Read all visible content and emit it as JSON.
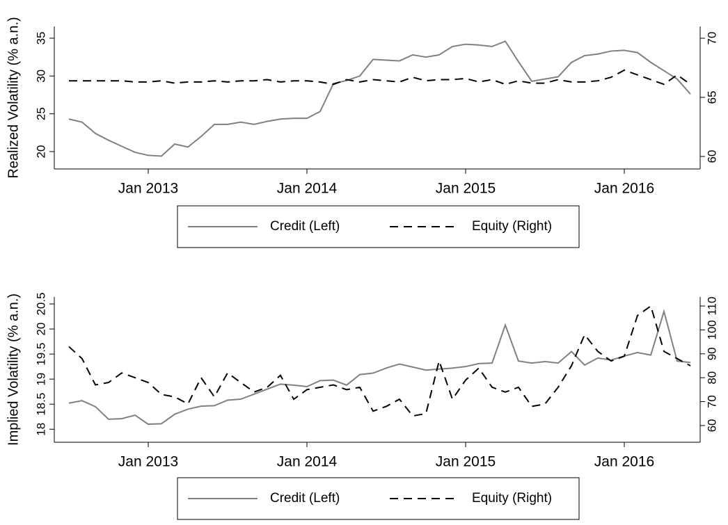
{
  "chart_data": [
    {
      "type": "line",
      "ylabel": "Realized Volatility (% a.n.)",
      "x": [
        2012.5,
        2012.583,
        2012.667,
        2012.75,
        2012.833,
        2012.917,
        2013,
        2013.083,
        2013.167,
        2013.25,
        2013.333,
        2013.417,
        2013.5,
        2013.583,
        2013.667,
        2013.75,
        2013.833,
        2013.917,
        2014,
        2014.083,
        2014.167,
        2014.25,
        2014.333,
        2014.417,
        2014.5,
        2014.583,
        2014.667,
        2014.75,
        2014.833,
        2014.917,
        2015,
        2015.083,
        2015.167,
        2015.25,
        2015.333,
        2015.417,
        2015.5,
        2015.583,
        2015.667,
        2015.75,
        2015.833,
        2015.917,
        2016,
        2016.083,
        2016.167,
        2016.25,
        2016.333,
        2016.417
      ],
      "xlim": [
        2012.408,
        2016.478
      ],
      "xticks": [
        {
          "value": 2013,
          "label": "Jan 2013"
        },
        {
          "value": 2014,
          "label": "Jan 2014"
        },
        {
          "value": 2015,
          "label": "Jan 2015"
        },
        {
          "value": 2016,
          "label": "Jan 2016"
        }
      ],
      "ylim": [
        17.7,
        36.56
      ],
      "yticks": [
        20,
        25,
        30,
        35
      ],
      "y2lim": [
        58.94,
        71
      ],
      "y2ticks": [
        60,
        65,
        70
      ],
      "grid": false,
      "legend": "bottom",
      "series": [
        {
          "name": "Credit (Left)",
          "color": "#808080",
          "line_style": "solid",
          "axis": "y",
          "values": [
            24.3,
            23.9,
            22.4,
            21.5,
            20.7,
            19.9,
            19.5,
            19.4,
            21.0,
            20.6,
            22.0,
            23.6,
            23.6,
            23.9,
            23.6,
            24.0,
            24.3,
            24.4,
            24.4,
            25.3,
            29.0,
            29.4,
            30.0,
            32.2,
            32.1,
            32.0,
            32.8,
            32.5,
            32.8,
            33.9,
            34.2,
            34.1,
            33.9,
            34.6,
            31.9,
            29.3,
            29.6,
            29.9,
            31.8,
            32.7,
            32.9,
            33.3,
            33.4,
            33.1,
            31.8,
            30.7,
            29.6,
            27.6
          ]
        },
        {
          "name": "Equity (Right)",
          "color": "#000000",
          "line_style": "dashed",
          "axis": "y2",
          "values": [
            66.4,
            66.4,
            66.4,
            66.4,
            66.4,
            66.3,
            66.3,
            66.4,
            66.2,
            66.3,
            66.3,
            66.4,
            66.3,
            66.4,
            66.4,
            66.5,
            66.3,
            66.4,
            66.4,
            66.3,
            66.1,
            66.5,
            66.3,
            66.5,
            66.4,
            66.3,
            66.7,
            66.4,
            66.5,
            66.5,
            66.6,
            66.3,
            66.5,
            66.1,
            66.4,
            66.2,
            66.2,
            66.5,
            66.3,
            66.3,
            66.4,
            66.7,
            67.3,
            66.9,
            66.5,
            66.1,
            66.9,
            66.1
          ]
        }
      ]
    },
    {
      "type": "line",
      "ylabel": "Implied Volatility (% a.n.)",
      "x": [
        2012.5,
        2012.583,
        2012.667,
        2012.75,
        2012.833,
        2012.917,
        2013,
        2013.083,
        2013.167,
        2013.25,
        2013.333,
        2013.417,
        2013.5,
        2013.583,
        2013.667,
        2013.75,
        2013.833,
        2013.917,
        2014,
        2014.083,
        2014.167,
        2014.25,
        2014.333,
        2014.417,
        2014.5,
        2014.583,
        2014.667,
        2014.75,
        2014.833,
        2014.917,
        2015,
        2015.083,
        2015.167,
        2015.25,
        2015.333,
        2015.417,
        2015.5,
        2015.583,
        2015.667,
        2015.75,
        2015.833,
        2015.917,
        2016,
        2016.083,
        2016.167,
        2016.25,
        2016.333,
        2016.417
      ],
      "xlim": [
        2012.408,
        2016.478
      ],
      "xticks": [
        {
          "value": 2013,
          "label": "Jan 2013"
        },
        {
          "value": 2014,
          "label": "Jan 2014"
        },
        {
          "value": 2015,
          "label": "Jan 2015"
        },
        {
          "value": 2016,
          "label": "Jan 2016"
        }
      ],
      "ylim": [
        17.74,
        20.64
      ],
      "yticks": [
        18,
        18.5,
        19,
        19.5,
        20,
        20.5
      ],
      "y2lim": [
        53.0,
        113.8
      ],
      "y2ticks": [
        60,
        70,
        80,
        90,
        100,
        110
      ],
      "grid": false,
      "legend": "bottom",
      "series": [
        {
          "name": "Credit (Left)",
          "color": "#808080",
          "line_style": "solid",
          "axis": "y",
          "values": [
            18.52,
            18.57,
            18.45,
            18.2,
            18.21,
            18.28,
            18.1,
            18.11,
            18.3,
            18.4,
            18.46,
            18.47,
            18.58,
            18.6,
            18.7,
            18.8,
            18.9,
            18.88,
            18.85,
            18.97,
            18.98,
            18.88,
            19.09,
            19.12,
            19.22,
            19.3,
            19.24,
            19.18,
            19.2,
            19.22,
            19.25,
            19.31,
            19.32,
            20.08,
            19.36,
            19.32,
            19.35,
            19.32,
            19.55,
            19.28,
            19.42,
            19.38,
            19.46,
            19.53,
            19.48,
            20.35,
            19.36,
            19.33
          ]
        },
        {
          "name": "Equity (Right)",
          "color": "#000000",
          "line_style": "dashed",
          "axis": "y2",
          "values": [
            93,
            88,
            77,
            78,
            82,
            80,
            78,
            73,
            72,
            69,
            80,
            72,
            82,
            78,
            74,
            76,
            81,
            71,
            75,
            76,
            77,
            75,
            76,
            66,
            68,
            71,
            64,
            65,
            87,
            71,
            79,
            84,
            76,
            74,
            76,
            68,
            69,
            76,
            85,
            98,
            91,
            87,
            89,
            106,
            110,
            91,
            88,
            85
          ]
        }
      ]
    }
  ]
}
